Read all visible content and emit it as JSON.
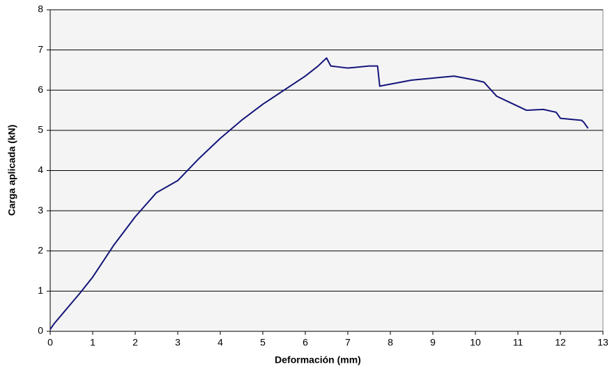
{
  "chart_data": {
    "type": "line",
    "xlabel": "Deformación (mm)",
    "ylabel": "Carga aplicada (kN)",
    "x": [
      0,
      0.1,
      0.3,
      0.5,
      0.7,
      1.0,
      1.5,
      2.0,
      2.5,
      3.0,
      3.5,
      4.0,
      4.5,
      5.0,
      5.5,
      6.0,
      6.3,
      6.5,
      6.6,
      7.0,
      7.5,
      7.7,
      7.75,
      8.0,
      8.5,
      9.0,
      9.5,
      10.0,
      10.2,
      10.5,
      10.8,
      11.0,
      11.2,
      11.6,
      11.9,
      12.0,
      12.5,
      12.55,
      12.65
    ],
    "series": [
      {
        "name": "Carga",
        "color": "#14147a",
        "values": [
          0.05,
          0.2,
          0.45,
          0.7,
          0.95,
          1.35,
          2.15,
          2.85,
          3.45,
          3.75,
          4.3,
          4.8,
          5.25,
          5.65,
          6.0,
          6.35,
          6.6,
          6.8,
          6.6,
          6.55,
          6.6,
          6.6,
          6.1,
          6.15,
          6.25,
          6.3,
          6.35,
          6.25,
          6.2,
          5.85,
          5.7,
          5.6,
          5.5,
          5.52,
          5.45,
          5.3,
          5.25,
          5.2,
          5.05
        ]
      }
    ],
    "xlim": [
      0,
      13
    ],
    "xticks": [
      0,
      1,
      2,
      3,
      4,
      5,
      6,
      7,
      8,
      9,
      10,
      11,
      12,
      13
    ],
    "ylim": [
      0,
      8
    ],
    "yticks": [
      0,
      1,
      2,
      3,
      4,
      5,
      6,
      7,
      8
    ],
    "grid": true
  }
}
